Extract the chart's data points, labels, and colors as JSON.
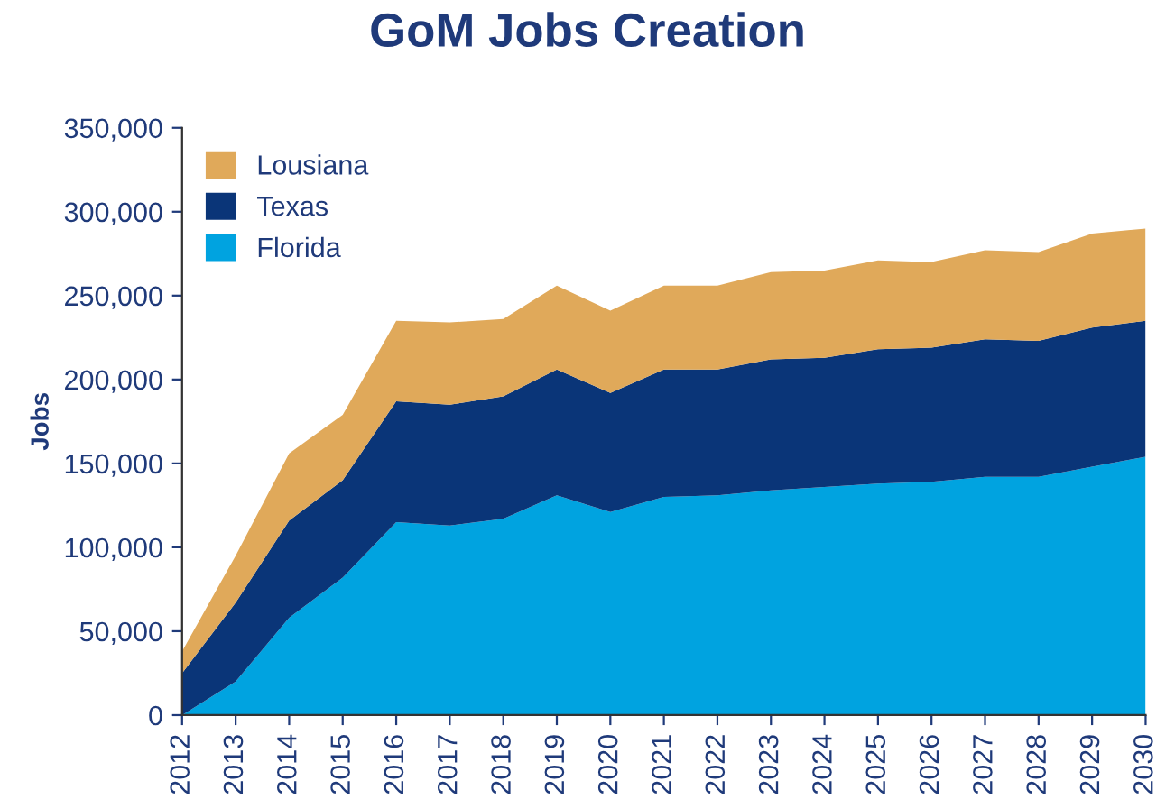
{
  "chart_data": {
    "type": "area",
    "stacked": true,
    "title": "GoM Jobs Creation",
    "ylabel": "Jobs",
    "x": [
      2012,
      2013,
      2014,
      2015,
      2016,
      2017,
      2018,
      2019,
      2020,
      2021,
      2022,
      2023,
      2024,
      2025,
      2026,
      2027,
      2028,
      2029,
      2030
    ],
    "series": [
      {
        "name": "Florida",
        "color": "#00a3e0",
        "values": [
          0,
          20000,
          58000,
          82000,
          115000,
          113000,
          117000,
          131000,
          121000,
          130000,
          131000,
          134000,
          136000,
          138000,
          139000,
          142000,
          142000,
          148000,
          154000
        ]
      },
      {
        "name": "Texas",
        "color": "#0a3578",
        "values": [
          25000,
          47000,
          58000,
          58000,
          72000,
          72000,
          73000,
          75000,
          71000,
          76000,
          75000,
          78000,
          77000,
          80000,
          80000,
          82000,
          81000,
          83000,
          81000
        ]
      },
      {
        "name": "Lousiana",
        "color": "#e0a95a",
        "values": [
          13000,
          28000,
          40000,
          39000,
          48000,
          49000,
          46000,
          50000,
          49000,
          50000,
          50000,
          52000,
          52000,
          53000,
          51000,
          53000,
          53000,
          56000,
          55000
        ]
      }
    ],
    "xlim": [
      2012,
      2030
    ],
    "xticks": [
      2012,
      2013,
      2014,
      2015,
      2016,
      2017,
      2018,
      2019,
      2020,
      2021,
      2022,
      2023,
      2024,
      2025,
      2026,
      2027,
      2028,
      2029,
      2030
    ],
    "ylim": [
      0,
      350000
    ],
    "yticks": [
      {
        "value": 0,
        "label": "0"
      },
      {
        "value": 50000,
        "label": "50,000"
      },
      {
        "value": 100000,
        "label": "100,000"
      },
      {
        "value": 150000,
        "label": "150,000"
      },
      {
        "value": 200000,
        "label": "200,000"
      },
      {
        "value": 250000,
        "label": "250,000"
      },
      {
        "value": 300000,
        "label": "300,000"
      },
      {
        "value": 350000,
        "label": "350,000"
      }
    ],
    "grid": false,
    "legend": "top left"
  }
}
